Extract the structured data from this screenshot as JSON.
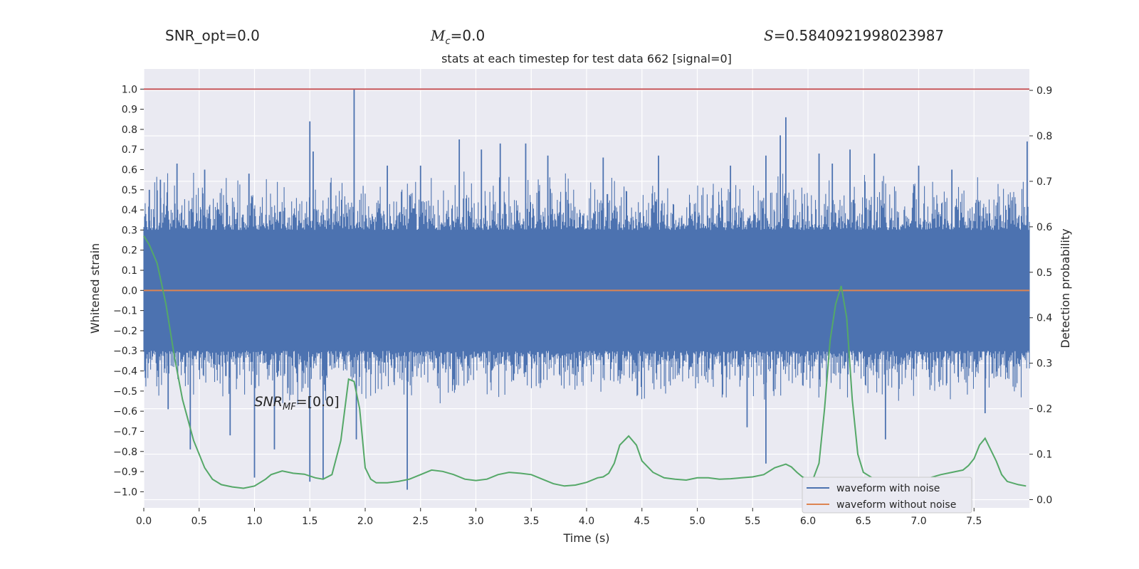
{
  "header": {
    "snr_opt": "SNR_opt=0.0",
    "mc_sym": "M",
    "mc_sub": "c",
    "mc_val": "=0.0",
    "s_sym": "S",
    "s_val": "=0.5840921998023987"
  },
  "chart_data": {
    "type": "line",
    "title": "stats at each timestep for test data 662 [signal=0]",
    "xlabel": "Time (s)",
    "ylabel_left": "Whitened strain",
    "ylabel_right": "Detection probability",
    "xlim": [
      0.0,
      8.0
    ],
    "ylim_left": [
      -1.08,
      1.1
    ],
    "ylim_right": [
      -0.018,
      0.947
    ],
    "x_ticks": [
      "0.0",
      "0.5",
      "1.0",
      "1.5",
      "2.0",
      "2.5",
      "3.0",
      "3.5",
      "4.0",
      "4.5",
      "5.0",
      "5.5",
      "6.0",
      "6.5",
      "7.0",
      "7.5"
    ],
    "y_left_ticks": [
      "1.0",
      "0.9",
      "0.8",
      "0.7",
      "0.6",
      "0.5",
      "0.4",
      "0.3",
      "0.2",
      "0.1",
      "0.0",
      "−0.1",
      "−0.2",
      "−0.3",
      "−0.4",
      "−0.5",
      "−0.6",
      "−0.7",
      "−0.8",
      "−0.9",
      "−1.0"
    ],
    "y_right_ticks": [
      "0.9",
      "0.8",
      "0.7",
      "0.6",
      "0.5",
      "0.4",
      "0.3",
      "0.2",
      "0.1",
      "0.0"
    ],
    "threshold": 1.0,
    "colors": {
      "noise": "#4c72b0",
      "clean": "#dd8452",
      "prob": "#55a868",
      "threshold": "#c44e52",
      "plot_bg": "#eaeaf2",
      "grid": "#ffffff"
    },
    "annotation": {
      "base": "SNR",
      "sub": "MF",
      "rest": "=[0.0]"
    },
    "series": [
      {
        "name": "waveform with noise",
        "envelope_description": "dense noise filling roughly ±0.3 to ±0.55",
        "spikes": [
          {
            "x": 0.05,
            "y": 0.5
          },
          {
            "x": 0.15,
            "y": 0.55
          },
          {
            "x": 0.22,
            "y": -0.59
          },
          {
            "x": 0.3,
            "y": 0.63
          },
          {
            "x": 0.42,
            "y": -0.79
          },
          {
            "x": 0.55,
            "y": 0.6
          },
          {
            "x": 0.78,
            "y": -0.72
          },
          {
            "x": 0.95,
            "y": 0.58
          },
          {
            "x": 1.0,
            "y": -0.93
          },
          {
            "x": 1.18,
            "y": -0.79
          },
          {
            "x": 1.5,
            "y": 0.84
          },
          {
            "x": 1.5,
            "y": -0.95
          },
          {
            "x": 1.53,
            "y": 0.69
          },
          {
            "x": 1.62,
            "y": -0.94
          },
          {
            "x": 1.9,
            "y": 1.0
          },
          {
            "x": 1.92,
            "y": -0.74
          },
          {
            "x": 2.2,
            "y": 0.62
          },
          {
            "x": 2.38,
            "y": -0.99
          },
          {
            "x": 2.5,
            "y": 0.62
          },
          {
            "x": 2.85,
            "y": 0.75
          },
          {
            "x": 3.05,
            "y": 0.7
          },
          {
            "x": 3.22,
            "y": 0.73
          },
          {
            "x": 3.45,
            "y": 0.73
          },
          {
            "x": 3.65,
            "y": 0.67
          },
          {
            "x": 4.15,
            "y": 0.66
          },
          {
            "x": 4.65,
            "y": 0.67
          },
          {
            "x": 5.3,
            "y": 0.62
          },
          {
            "x": 5.45,
            "y": -0.68
          },
          {
            "x": 5.62,
            "y": 0.67
          },
          {
            "x": 5.62,
            "y": -0.86
          },
          {
            "x": 5.75,
            "y": 0.77
          },
          {
            "x": 5.8,
            "y": 0.86
          },
          {
            "x": 6.1,
            "y": 0.68
          },
          {
            "x": 6.22,
            "y": 0.63
          },
          {
            "x": 6.38,
            "y": 0.7
          },
          {
            "x": 6.6,
            "y": 0.68
          },
          {
            "x": 6.7,
            "y": -0.74
          },
          {
            "x": 7.0,
            "y": 0.62
          },
          {
            "x": 7.3,
            "y": 0.6
          },
          {
            "x": 7.6,
            "y": -0.61
          },
          {
            "x": 7.98,
            "y": 0.74
          }
        ]
      },
      {
        "name": "waveform without noise",
        "y": 0.0
      },
      {
        "name": "",
        "axis": "right",
        "x": [
          0.0,
          0.05,
          0.12,
          0.2,
          0.28,
          0.35,
          0.45,
          0.55,
          0.62,
          0.7,
          0.8,
          0.9,
          1.0,
          1.1,
          1.15,
          1.25,
          1.35,
          1.45,
          1.55,
          1.62,
          1.7,
          1.78,
          1.85,
          1.9,
          1.95,
          2.0,
          2.05,
          2.1,
          2.2,
          2.3,
          2.4,
          2.5,
          2.6,
          2.7,
          2.8,
          2.9,
          3.0,
          3.1,
          3.2,
          3.3,
          3.4,
          3.5,
          3.6,
          3.7,
          3.8,
          3.9,
          4.0,
          4.1,
          4.15,
          4.2,
          4.25,
          4.3,
          4.38,
          4.45,
          4.5,
          4.6,
          4.7,
          4.8,
          4.9,
          5.0,
          5.1,
          5.2,
          5.3,
          5.4,
          5.5,
          5.6,
          5.7,
          5.8,
          5.85,
          5.9,
          5.95,
          6.0,
          6.05,
          6.1,
          6.15,
          6.2,
          6.25,
          6.3,
          6.35,
          6.4,
          6.45,
          6.5,
          6.6,
          6.7,
          6.8,
          6.9,
          7.0,
          7.1,
          7.2,
          7.3,
          7.4,
          7.45,
          7.5,
          7.55,
          7.6,
          7.65,
          7.7,
          7.75,
          7.8,
          7.9,
          7.97
        ],
        "y": [
          0.58,
          0.56,
          0.52,
          0.43,
          0.31,
          0.22,
          0.13,
          0.07,
          0.045,
          0.033,
          0.028,
          0.025,
          0.03,
          0.045,
          0.055,
          0.063,
          0.058,
          0.056,
          0.048,
          0.045,
          0.055,
          0.13,
          0.265,
          0.26,
          0.2,
          0.07,
          0.045,
          0.037,
          0.037,
          0.04,
          0.045,
          0.055,
          0.065,
          0.062,
          0.055,
          0.045,
          0.042,
          0.045,
          0.055,
          0.06,
          0.058,
          0.055,
          0.045,
          0.035,
          0.03,
          0.032,
          0.038,
          0.048,
          0.05,
          0.058,
          0.08,
          0.12,
          0.14,
          0.12,
          0.085,
          0.06,
          0.048,
          0.045,
          0.043,
          0.048,
          0.048,
          0.045,
          0.046,
          0.048,
          0.05,
          0.055,
          0.07,
          0.078,
          0.072,
          0.06,
          0.05,
          0.045,
          0.048,
          0.08,
          0.2,
          0.35,
          0.43,
          0.47,
          0.4,
          0.22,
          0.1,
          0.06,
          0.045,
          0.04,
          0.04,
          0.04,
          0.043,
          0.048,
          0.055,
          0.06,
          0.065,
          0.075,
          0.09,
          0.12,
          0.135,
          0.11,
          0.085,
          0.055,
          0.04,
          0.033,
          0.03
        ]
      }
    ],
    "legend": {
      "placement": "lower-right",
      "entries": [
        "waveform with noise",
        "waveform without noise"
      ]
    },
    "grid": true
  }
}
